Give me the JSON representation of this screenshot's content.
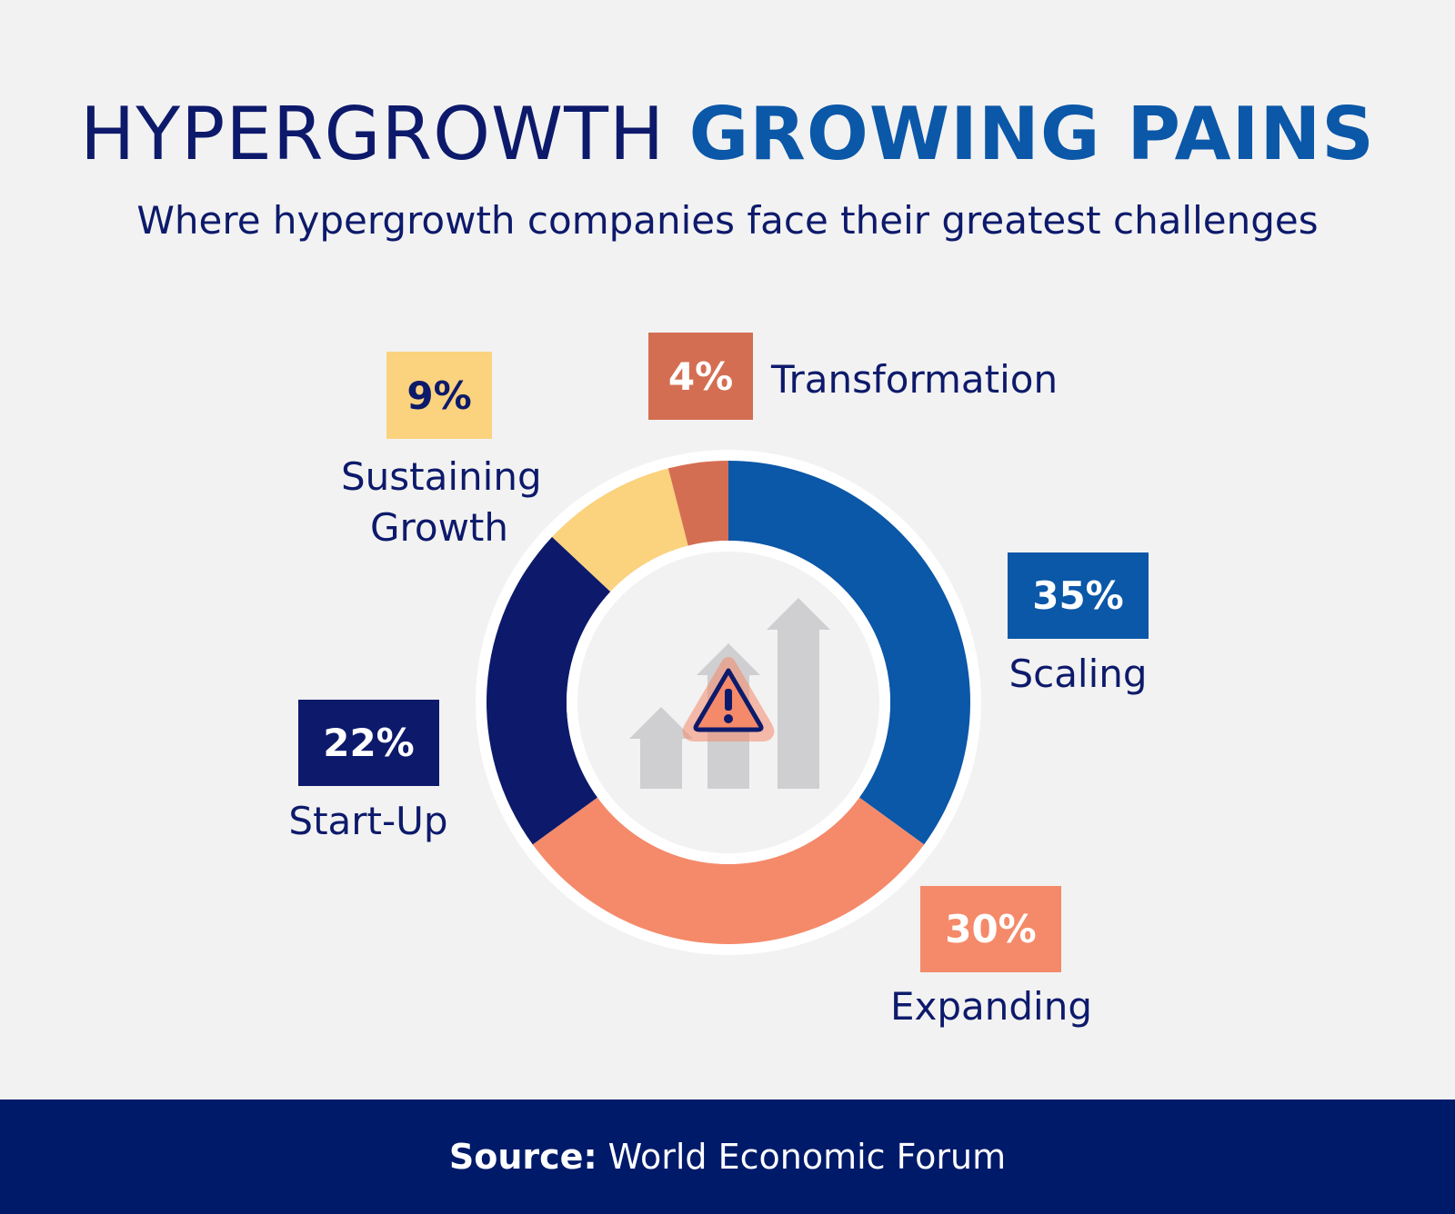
{
  "header": {
    "title_light": "HYPERGROWTH",
    "title_bold": "GROWING PAINS",
    "subtitle": "Where hypergrowth companies face their greatest challenges"
  },
  "chart_data": {
    "type": "pie",
    "variant": "donut",
    "title": "HYPERGROWTH GROWING PAINS",
    "subtitle": "Where hypergrowth companies face their greatest challenges",
    "slices": [
      {
        "label": "Scaling",
        "value": 35,
        "value_label": "35%",
        "color": "#0b57a8"
      },
      {
        "label": "Expanding",
        "value": 30,
        "value_label": "30%",
        "color": "#f48a6a"
      },
      {
        "label": "Start-Up",
        "value": 22,
        "value_label": "22%",
        "color": "#0d1a6b"
      },
      {
        "label": "Sustaining Growth",
        "value": 9,
        "value_label": "9%",
        "color": "#fbd27e"
      },
      {
        "label": "Transformation",
        "value": 4,
        "value_label": "4%",
        "color": "#d46e52"
      }
    ]
  },
  "center_icon": "growth-arrows-warning-icon",
  "footer": {
    "source_label": "Source:",
    "source_text": "World Economic Forum"
  }
}
